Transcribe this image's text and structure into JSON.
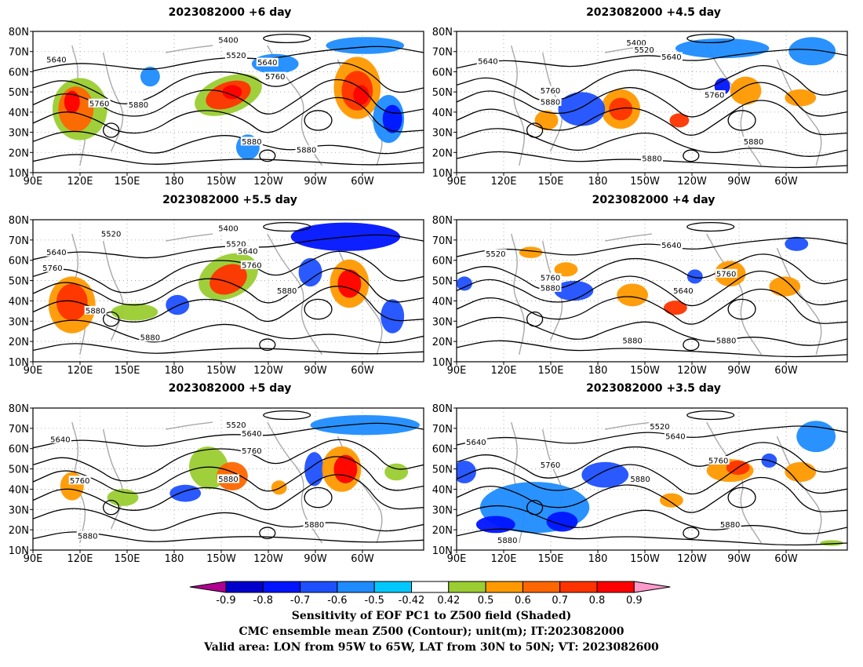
{
  "panels": [
    {
      "title": "2023082000 +6 day",
      "labels": [
        "5400",
        "5520",
        "5640",
        "5640",
        "5760",
        "5760",
        "5880",
        "5880",
        "5880"
      ]
    },
    {
      "title": "2023082000 +4.5 day",
      "labels": [
        "5400",
        "5520",
        "5640",
        "5640",
        "5760",
        "5880",
        "5760",
        "5880",
        "5880"
      ]
    },
    {
      "title": "2023082000 +5.5 day",
      "labels": [
        "5400",
        "5520",
        "5520",
        "5640",
        "5640",
        "5760",
        "5760",
        "5880",
        "5880",
        "5880"
      ]
    },
    {
      "title": "2023082000 +4 day",
      "labels": [
        "5520",
        "5640",
        "5640",
        "5760",
        "5760",
        "5880",
        "5880",
        "5880"
      ]
    },
    {
      "title": "2023082000 +5 day",
      "labels": [
        "5520",
        "5640",
        "5640",
        "5760",
        "5760",
        "5880",
        "5880",
        "5880"
      ]
    },
    {
      "title": "2023082000 +3.5 day",
      "labels": [
        "5520",
        "5640",
        "5640",
        "5760",
        "5760",
        "5880",
        "5880",
        "5880"
      ]
    }
  ],
  "axes": {
    "lat_labels": [
      "80N",
      "70N",
      "60N",
      "50N",
      "40N",
      "30N",
      "20N",
      "10N"
    ],
    "lon_labels": [
      "90E",
      "120E",
      "150E",
      "180",
      "150W",
      "120W",
      "90W",
      "60W"
    ]
  },
  "colorbar": {
    "ticks": [
      "-0.9",
      "-0.8",
      "-0.7",
      "-0.6",
      "-0.5",
      "-0.42",
      "0.42",
      "0.5",
      "0.6",
      "0.7",
      "0.8",
      "0.9"
    ],
    "colors": [
      "#b0008f",
      "#0000cc",
      "#0014ff",
      "#1e50ff",
      "#1e8cff",
      "#00c8ff",
      "#ffffff",
      "#9acd32",
      "#ff9900",
      "#ff6600",
      "#ff3300",
      "#ff0000",
      "#ff99cc"
    ]
  },
  "caption": {
    "line1": "Sensitivity of EOF PC1 to Z500 field (Shaded)",
    "line2": "CMC ensemble mean Z500 (Contour); unit(m); IT:2023082000",
    "line3": "Valid area: LON from 95W to 65W, LAT from 30N to 50N; VT: 2023082600"
  }
}
